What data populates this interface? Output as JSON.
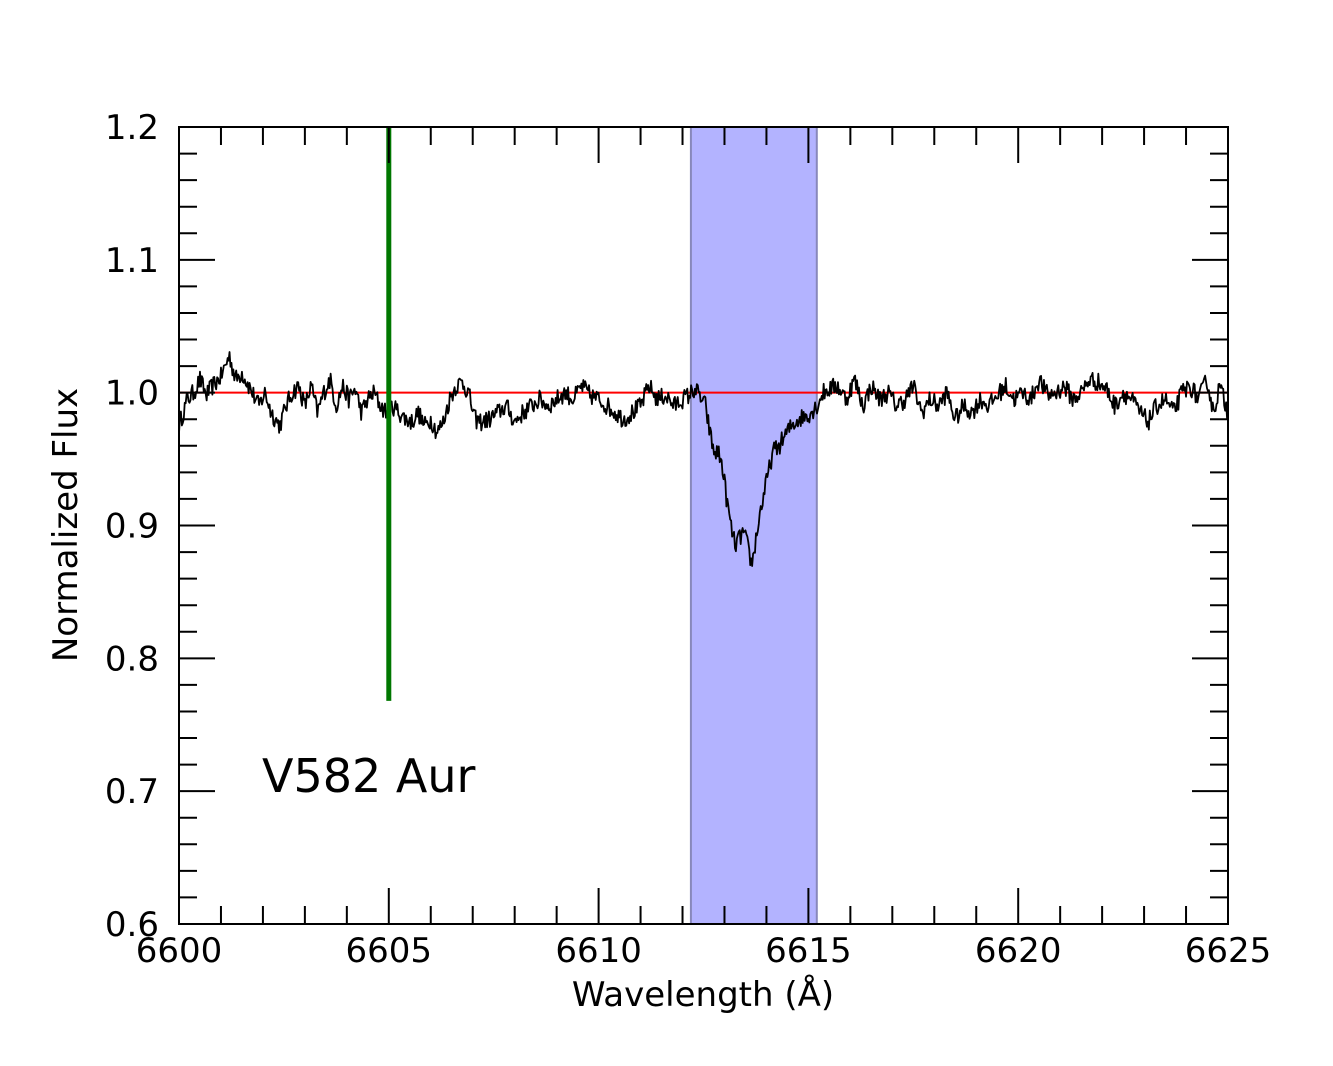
{
  "chart_data": {
    "type": "line",
    "title": "",
    "xlabel": "Wavelength (Å)",
    "ylabel": "Normalized Flux",
    "xlim": [
      6600,
      6625
    ],
    "ylim": [
      0.6,
      1.2
    ],
    "x_ticks": [
      6600,
      6605,
      6610,
      6615,
      6620,
      6625
    ],
    "x_tick_labels": [
      "6600",
      "6605",
      "6610",
      "6615",
      "6620",
      "6625"
    ],
    "y_ticks": [
      0.6,
      0.7,
      0.8,
      0.9,
      1.0,
      1.1,
      1.2
    ],
    "y_tick_labels": [
      "0.6",
      "0.7",
      "0.8",
      "0.9",
      "1.0",
      "1.1",
      "1.2"
    ],
    "annotation": "V582 Aur",
    "continuum": {
      "y": 1.0,
      "color": "#ff0000"
    },
    "marker_line": {
      "x": 6605.0,
      "y_from": 0.768,
      "y_to": 1.2,
      "color": "#007700"
    },
    "shaded_band": {
      "x_from": 6612.2,
      "x_to": 6615.2,
      "color": "#b3b3ff",
      "edge_color": "#8888bb"
    },
    "series": [
      {
        "color": "#000000",
        "x": [
          6600.0,
          6600.1,
          6600.2,
          6600.35,
          6600.5,
          6600.65,
          6600.8,
          6601.0,
          6601.2,
          6601.35,
          6601.5,
          6601.7,
          6601.9,
          6602.05,
          6602.2,
          6602.4,
          6602.55,
          6602.7,
          6602.85,
          6603.0,
          6603.15,
          6603.3,
          6603.45,
          6603.6,
          6603.75,
          6603.9,
          6604.05,
          6604.2,
          6604.35,
          6604.5,
          6604.65,
          6604.8,
          6604.95,
          6605.1,
          6605.25,
          6605.4,
          6605.55,
          6605.7,
          6605.85,
          6606.0,
          6606.15,
          6606.3,
          6606.45,
          6606.6,
          6606.75,
          6606.9,
          6607.05,
          6607.2,
          6607.4,
          6607.6,
          6607.8,
          6608.0,
          6608.2,
          6608.4,
          6608.6,
          6608.8,
          6609.0,
          6609.2,
          6609.4,
          6609.6,
          6609.8,
          6610.0,
          6610.2,
          6610.4,
          6610.6,
          6610.8,
          6611.0,
          6611.2,
          6611.4,
          6611.6,
          6611.8,
          6612.0,
          6612.15,
          6612.3,
          6612.45,
          6612.55,
          6612.65,
          6612.75,
          6612.85,
          6612.95,
          6613.05,
          6613.15,
          6613.25,
          6613.35,
          6613.45,
          6613.55,
          6613.65,
          6613.75,
          6613.85,
          6613.95,
          6614.05,
          6614.15,
          6614.3,
          6614.45,
          6614.6,
          6614.75,
          6614.9,
          6615.05,
          6615.2,
          6615.35,
          6615.5,
          6615.7,
          6615.9,
          6616.1,
          6616.3,
          6616.5,
          6616.7,
          6616.9,
          6617.1,
          6617.3,
          6617.5,
          6617.7,
          6617.9,
          6618.1,
          6618.3,
          6618.5,
          6618.7,
          6618.9,
          6619.1,
          6619.3,
          6619.5,
          6619.7,
          6619.9,
          6620.1,
          6620.3,
          6620.5,
          6620.7,
          6620.9,
          6621.1,
          6621.3,
          6621.5,
          6621.7,
          6621.9,
          6622.1,
          6622.3,
          6622.5,
          6622.7,
          6622.9,
          6623.1,
          6623.3,
          6623.5,
          6623.7,
          6623.9,
          6624.1,
          6624.3,
          6624.5,
          6624.65,
          6624.8,
          6624.9,
          6625.0
        ],
        "y": [
          0.975,
          0.985,
          0.995,
          1.0,
          1.01,
          0.998,
          1.005,
          1.012,
          1.028,
          1.01,
          1.015,
          1.003,
          0.99,
          1.0,
          0.985,
          0.975,
          0.99,
          1.0,
          1.005,
          0.99,
          1.005,
          0.985,
          1.0,
          1.01,
          0.99,
          1.005,
          0.995,
          1.003,
          0.985,
          0.995,
          1.0,
          0.99,
          0.985,
          0.99,
          0.985,
          0.98,
          0.978,
          0.985,
          0.975,
          0.98,
          0.97,
          0.978,
          0.995,
          1.005,
          1.008,
          1.0,
          0.98,
          0.978,
          0.98,
          0.985,
          0.99,
          0.978,
          0.985,
          0.99,
          0.995,
          0.99,
          0.995,
          1.0,
          0.995,
          1.005,
          0.998,
          0.995,
          0.99,
          0.985,
          0.98,
          0.985,
          0.99,
          1.005,
          0.995,
          0.998,
          0.99,
          0.995,
          0.998,
          1.003,
          0.995,
          0.99,
          0.97,
          0.955,
          0.955,
          0.945,
          0.92,
          0.9,
          0.885,
          0.89,
          0.895,
          0.885,
          0.87,
          0.89,
          0.91,
          0.925,
          0.94,
          0.955,
          0.96,
          0.968,
          0.975,
          0.98,
          0.982,
          0.985,
          0.99,
          1.0,
          1.003,
          1.005,
          0.995,
          1.01,
          0.99,
          1.005,
          0.995,
          1.0,
          0.99,
          0.995,
          1.005,
          0.985,
          0.995,
          0.99,
          1.0,
          0.98,
          0.99,
          0.985,
          0.995,
          0.99,
          0.998,
          1.005,
          0.995,
          1.0,
          0.995,
          1.01,
          0.998,
          1.0,
          1.005,
          0.995,
          1.0,
          1.01,
          1.008,
          1.003,
          0.99,
          1.0,
          0.995,
          0.985,
          0.978,
          0.99,
          0.995,
          0.985,
          1.0,
          1.005,
          0.995,
          1.01,
          0.985,
          1.005,
          0.995,
          0.985
        ],
        "noise_amplitude": 0.007
      }
    ]
  }
}
